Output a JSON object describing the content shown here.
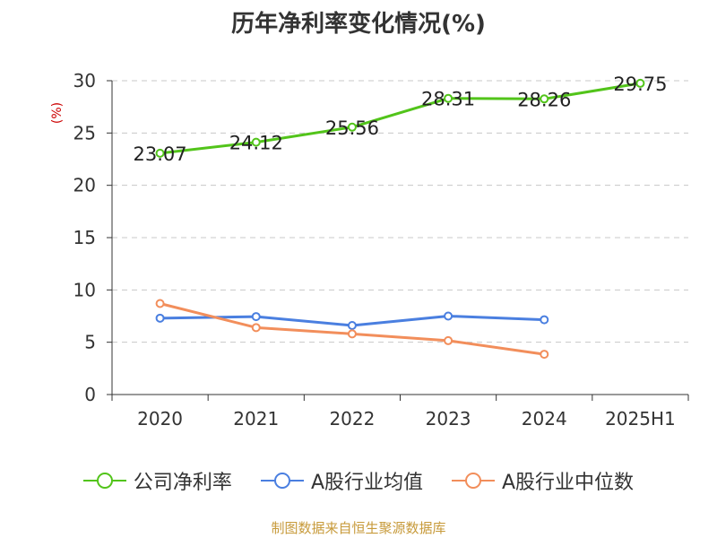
{
  "chart_data": {
    "type": "line",
    "title": "历年净利率变化情况(%)",
    "ylabel": "(%)",
    "categories": [
      "2020",
      "2021",
      "2022",
      "2023",
      "2024",
      "2025H1"
    ],
    "ylim": [
      0,
      30
    ],
    "yticks": [
      0,
      5,
      10,
      15,
      20,
      25,
      30
    ],
    "grid": true,
    "legend_position": "bottom",
    "series": [
      {
        "name": "公司净利率",
        "color": "#52c41a",
        "values": [
          23.07,
          24.12,
          25.56,
          28.31,
          28.26,
          29.75
        ],
        "show_labels": true
      },
      {
        "name": "A股行业均值",
        "color": "#4a7fe0",
        "values": [
          7.3,
          7.45,
          6.6,
          7.5,
          7.15,
          null
        ],
        "show_labels": false
      },
      {
        "name": "A股行业中位数",
        "color": "#f28e5b",
        "values": [
          8.7,
          6.4,
          5.8,
          5.15,
          3.85,
          null
        ],
        "show_labels": false
      }
    ]
  },
  "footer": {
    "source": "制图数据来自恒生聚源数据库"
  }
}
